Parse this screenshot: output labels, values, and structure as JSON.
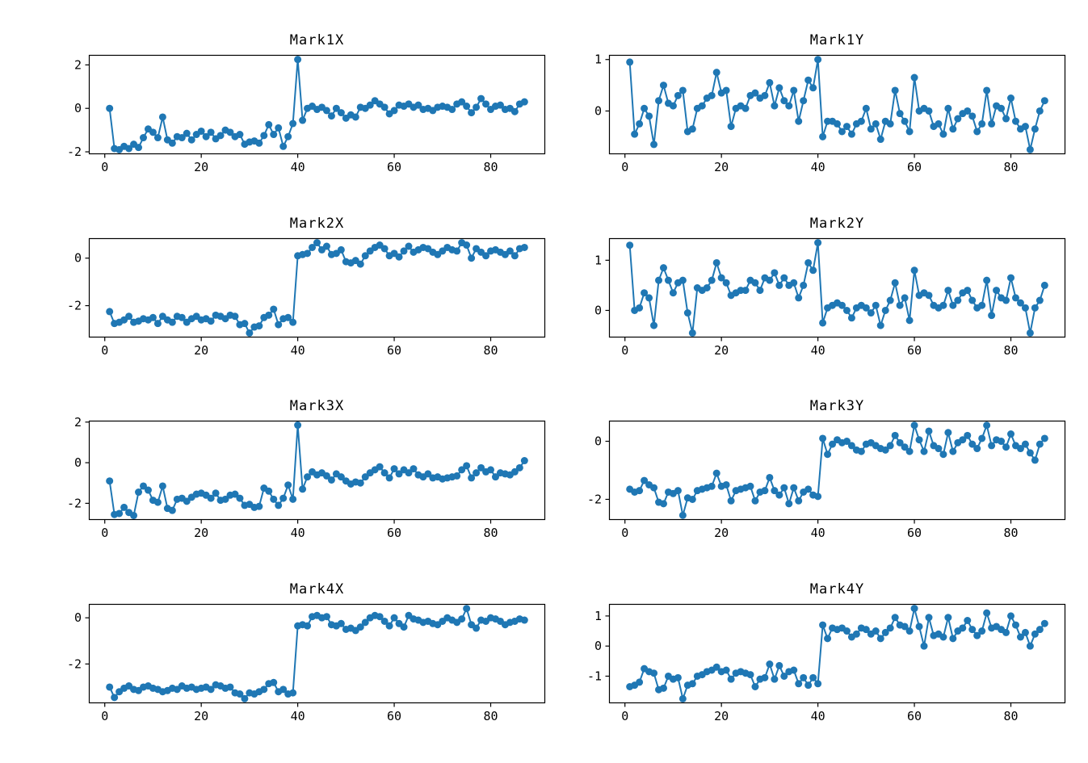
{
  "figure": {
    "background": "#ffffff",
    "series_color": "#1f77b4",
    "axis_color": "#000000",
    "text_color": "#000000"
  },
  "chart_data": [
    {
      "type": "line",
      "title": "Mark1X",
      "xlabel": "",
      "ylabel": "",
      "x_ticks": [
        0,
        20,
        40,
        60,
        80
      ],
      "y_ticks": [
        -2,
        0,
        2
      ],
      "xlim": [
        -3.3,
        91.3
      ],
      "ylim": [
        -2.11,
        2.46
      ],
      "x_start": 1,
      "n_points": 87,
      "grid": false,
      "legend": "none",
      "marker": "circle",
      "values": [
        0.0,
        -1.85,
        -1.9,
        -1.75,
        -1.85,
        -1.65,
        -1.8,
        -1.35,
        -0.95,
        -1.1,
        -1.35,
        -0.4,
        -1.45,
        -1.6,
        -1.3,
        -1.35,
        -1.15,
        -1.45,
        -1.2,
        -1.05,
        -1.3,
        -1.1,
        -1.4,
        -1.25,
        -1.0,
        -1.1,
        -1.3,
        -1.2,
        -1.65,
        -1.55,
        -1.5,
        -1.6,
        -1.25,
        -0.75,
        -1.2,
        -0.9,
        -1.75,
        -1.3,
        -0.7,
        2.25,
        -0.55,
        0.0,
        0.1,
        -0.05,
        0.05,
        -0.1,
        -0.35,
        0.0,
        -0.2,
        -0.45,
        -0.3,
        -0.4,
        0.05,
        0.0,
        0.15,
        0.35,
        0.2,
        0.05,
        -0.25,
        -0.1,
        0.15,
        0.1,
        0.2,
        0.05,
        0.15,
        -0.05,
        0.0,
        -0.1,
        0.05,
        0.1,
        0.05,
        -0.05,
        0.2,
        0.3,
        0.1,
        -0.2,
        0.05,
        0.45,
        0.2,
        -0.05,
        0.1,
        0.15,
        -0.05,
        0.0,
        -0.15,
        0.2,
        0.3
      ]
    },
    {
      "type": "line",
      "title": "Mark1Y",
      "xlabel": "",
      "ylabel": "",
      "x_ticks": [
        0,
        20,
        40,
        60,
        80
      ],
      "y_ticks": [
        0,
        1
      ],
      "xlim": [
        -3.3,
        91.3
      ],
      "ylim": [
        -0.84,
        1.09
      ],
      "x_start": 1,
      "n_points": 87,
      "grid": false,
      "legend": "none",
      "marker": "circle",
      "values": [
        0.95,
        -0.45,
        -0.25,
        0.05,
        -0.1,
        -0.65,
        0.2,
        0.5,
        0.15,
        0.1,
        0.3,
        0.4,
        -0.4,
        -0.35,
        0.05,
        0.1,
        0.25,
        0.3,
        0.75,
        0.35,
        0.4,
        -0.3,
        0.05,
        0.1,
        0.05,
        0.3,
        0.35,
        0.25,
        0.3,
        0.55,
        0.1,
        0.45,
        0.2,
        0.1,
        0.4,
        -0.2,
        0.2,
        0.6,
        0.45,
        1.0,
        -0.5,
        -0.2,
        -0.2,
        -0.25,
        -0.4,
        -0.3,
        -0.45,
        -0.25,
        -0.2,
        0.05,
        -0.35,
        -0.25,
        -0.55,
        -0.2,
        -0.25,
        0.4,
        -0.05,
        -0.2,
        -0.4,
        0.65,
        0.0,
        0.05,
        0.0,
        -0.3,
        -0.25,
        -0.45,
        0.05,
        -0.35,
        -0.15,
        -0.05,
        0.0,
        -0.1,
        -0.4,
        -0.25,
        0.4,
        -0.25,
        0.1,
        0.05,
        -0.15,
        0.25,
        -0.2,
        -0.35,
        -0.3,
        -0.75,
        -0.35,
        0.0,
        0.2
      ]
    },
    {
      "type": "line",
      "title": "Mark2X",
      "xlabel": "",
      "ylabel": "",
      "x_ticks": [
        0,
        20,
        40,
        60,
        80
      ],
      "y_ticks": [
        -2,
        0
      ],
      "xlim": [
        -3.3,
        91.3
      ],
      "ylim": [
        -3.34,
        0.84
      ],
      "x_start": 1,
      "n_points": 87,
      "grid": false,
      "legend": "none",
      "marker": "circle",
      "values": [
        -2.25,
        -2.75,
        -2.7,
        -2.6,
        -2.45,
        -2.7,
        -2.65,
        -2.55,
        -2.6,
        -2.5,
        -2.75,
        -2.45,
        -2.6,
        -2.7,
        -2.45,
        -2.5,
        -2.7,
        -2.55,
        -2.45,
        -2.6,
        -2.55,
        -2.65,
        -2.4,
        -2.45,
        -2.55,
        -2.4,
        -2.45,
        -2.8,
        -2.75,
        -3.15,
        -2.9,
        -2.85,
        -2.5,
        -2.4,
        -2.15,
        -2.8,
        -2.55,
        -2.5,
        -2.7,
        0.1,
        0.15,
        0.2,
        0.45,
        0.65,
        0.35,
        0.5,
        0.15,
        0.2,
        0.35,
        -0.15,
        -0.2,
        -0.1,
        -0.25,
        0.1,
        0.3,
        0.45,
        0.55,
        0.4,
        0.1,
        0.2,
        0.05,
        0.3,
        0.5,
        0.25,
        0.35,
        0.45,
        0.4,
        0.25,
        0.15,
        0.3,
        0.45,
        0.35,
        0.3,
        0.65,
        0.55,
        0.0,
        0.4,
        0.25,
        0.1,
        0.3,
        0.35,
        0.25,
        0.15,
        0.3,
        0.1,
        0.4,
        0.45
      ]
    },
    {
      "type": "line",
      "title": "Mark2Y",
      "xlabel": "",
      "ylabel": "",
      "x_ticks": [
        0,
        20,
        40,
        60,
        80
      ],
      "y_ticks": [
        0,
        1
      ],
      "xlim": [
        -3.3,
        91.3
      ],
      "ylim": [
        -0.54,
        1.44
      ],
      "x_start": 1,
      "n_points": 87,
      "grid": false,
      "legend": "none",
      "marker": "circle",
      "values": [
        1.3,
        0.0,
        0.05,
        0.35,
        0.25,
        -0.3,
        0.6,
        0.85,
        0.6,
        0.35,
        0.55,
        0.6,
        -0.05,
        -0.45,
        0.45,
        0.4,
        0.45,
        0.6,
        0.95,
        0.65,
        0.55,
        0.3,
        0.35,
        0.4,
        0.4,
        0.6,
        0.55,
        0.4,
        0.65,
        0.6,
        0.75,
        0.5,
        0.65,
        0.5,
        0.55,
        0.25,
        0.5,
        0.95,
        0.8,
        1.35,
        -0.25,
        0.05,
        0.1,
        0.15,
        0.1,
        0.0,
        -0.15,
        0.05,
        0.1,
        0.05,
        -0.05,
        0.1,
        -0.3,
        0.0,
        0.2,
        0.55,
        0.1,
        0.25,
        -0.2,
        0.8,
        0.3,
        0.35,
        0.3,
        0.1,
        0.05,
        0.1,
        0.4,
        0.1,
        0.2,
        0.35,
        0.4,
        0.2,
        0.05,
        0.1,
        0.6,
        -0.1,
        0.4,
        0.25,
        0.2,
        0.65,
        0.25,
        0.15,
        0.05,
        -0.45,
        0.05,
        0.2,
        0.5
      ]
    },
    {
      "type": "line",
      "title": "Mark3X",
      "xlabel": "",
      "ylabel": "",
      "x_ticks": [
        0,
        20,
        40,
        60,
        80
      ],
      "y_ticks": [
        -2,
        0,
        2
      ],
      "xlim": [
        -3.3,
        91.3
      ],
      "ylim": [
        -2.82,
        2.07
      ],
      "x_start": 1,
      "n_points": 87,
      "grid": false,
      "legend": "none",
      "marker": "circle",
      "values": [
        -0.9,
        -2.55,
        -2.5,
        -2.2,
        -2.45,
        -2.6,
        -1.45,
        -1.15,
        -1.35,
        -1.85,
        -1.95,
        -1.15,
        -2.25,
        -2.35,
        -1.8,
        -1.75,
        -1.9,
        -1.7,
        -1.55,
        -1.5,
        -1.6,
        -1.75,
        -1.5,
        -1.85,
        -1.8,
        -1.6,
        -1.55,
        -1.75,
        -2.1,
        -2.05,
        -2.2,
        -2.15,
        -1.25,
        -1.4,
        -1.8,
        -2.1,
        -1.75,
        -1.1,
        -1.8,
        1.85,
        -1.3,
        -0.7,
        -0.45,
        -0.6,
        -0.5,
        -0.65,
        -0.85,
        -0.55,
        -0.7,
        -0.9,
        -1.05,
        -0.95,
        -1.0,
        -0.7,
        -0.5,
        -0.35,
        -0.2,
        -0.5,
        -0.75,
        -0.3,
        -0.55,
        -0.35,
        -0.5,
        -0.3,
        -0.6,
        -0.7,
        -0.55,
        -0.75,
        -0.7,
        -0.8,
        -0.75,
        -0.7,
        -0.65,
        -0.35,
        -0.15,
        -0.75,
        -0.5,
        -0.25,
        -0.45,
        -0.35,
        -0.7,
        -0.5,
        -0.55,
        -0.6,
        -0.45,
        -0.25,
        0.1
      ]
    },
    {
      "type": "line",
      "title": "Mark3Y",
      "xlabel": "",
      "ylabel": "",
      "x_ticks": [
        0,
        20,
        40,
        60,
        80
      ],
      "y_ticks": [
        -2,
        0
      ],
      "xlim": [
        -3.3,
        91.3
      ],
      "ylim": [
        -2.71,
        0.71
      ],
      "x_start": 1,
      "n_points": 87,
      "grid": false,
      "legend": "none",
      "marker": "circle",
      "values": [
        -1.65,
        -1.75,
        -1.7,
        -1.35,
        -1.5,
        -1.6,
        -2.1,
        -2.15,
        -1.75,
        -1.8,
        -1.7,
        -2.55,
        -1.95,
        -2.0,
        -1.7,
        -1.65,
        -1.6,
        -1.55,
        -1.1,
        -1.55,
        -1.5,
        -2.05,
        -1.7,
        -1.65,
        -1.6,
        -1.55,
        -2.05,
        -1.75,
        -1.7,
        -1.25,
        -1.7,
        -1.85,
        -1.6,
        -2.15,
        -1.6,
        -2.05,
        -1.75,
        -1.65,
        -1.85,
        -1.9,
        0.1,
        -0.45,
        -0.1,
        0.05,
        -0.05,
        0.0,
        -0.15,
        -0.3,
        -0.35,
        -0.1,
        -0.05,
        -0.15,
        -0.25,
        -0.3,
        -0.15,
        0.2,
        -0.05,
        -0.2,
        -0.35,
        0.55,
        0.05,
        -0.35,
        0.35,
        -0.15,
        -0.25,
        -0.45,
        0.3,
        -0.35,
        -0.05,
        0.05,
        0.2,
        -0.1,
        -0.25,
        0.1,
        0.55,
        -0.15,
        0.05,
        0.0,
        -0.2,
        0.25,
        -0.15,
        -0.25,
        -0.1,
        -0.4,
        -0.65,
        -0.1,
        0.1
      ]
    },
    {
      "type": "line",
      "title": "Mark4X",
      "xlabel": "",
      "ylabel": "",
      "x_ticks": [
        0,
        20,
        40,
        60,
        80
      ],
      "y_ticks": [
        -2,
        0
      ],
      "xlim": [
        -3.3,
        91.3
      ],
      "ylim": [
        -3.7,
        0.6
      ],
      "x_start": 1,
      "n_points": 87,
      "grid": false,
      "legend": "none",
      "marker": "circle",
      "values": [
        -3.0,
        -3.45,
        -3.2,
        -3.05,
        -2.95,
        -3.1,
        -3.15,
        -3.0,
        -2.95,
        -3.05,
        -3.1,
        -3.2,
        -3.15,
        -3.05,
        -3.1,
        -2.95,
        -3.05,
        -3.0,
        -3.1,
        -3.05,
        -3.0,
        -3.1,
        -2.9,
        -2.95,
        -3.05,
        -3.0,
        -3.25,
        -3.3,
        -3.5,
        -3.25,
        -3.3,
        -3.2,
        -3.1,
        -2.85,
        -2.8,
        -3.2,
        -3.1,
        -3.3,
        -3.25,
        -0.35,
        -0.3,
        -0.35,
        0.05,
        0.1,
        0.0,
        0.05,
        -0.3,
        -0.35,
        -0.25,
        -0.5,
        -0.45,
        -0.55,
        -0.4,
        -0.2,
        0.0,
        0.1,
        0.05,
        -0.15,
        -0.35,
        0.0,
        -0.25,
        -0.4,
        0.1,
        -0.05,
        -0.1,
        -0.2,
        -0.15,
        -0.25,
        -0.3,
        -0.15,
        0.0,
        -0.1,
        -0.2,
        -0.05,
        0.4,
        -0.3,
        -0.45,
        -0.1,
        -0.15,
        0.0,
        -0.05,
        -0.15,
        -0.3,
        -0.2,
        -0.15,
        -0.05,
        -0.1
      ]
    },
    {
      "type": "line",
      "title": "Mark4Y",
      "xlabel": "",
      "ylabel": "",
      "x_ticks": [
        0,
        20,
        40,
        60,
        80
      ],
      "y_ticks": [
        -1,
        0,
        1
      ],
      "xlim": [
        -3.3,
        91.3
      ],
      "ylim": [
        -1.9,
        1.4
      ],
      "x_start": 1,
      "n_points": 87,
      "grid": false,
      "legend": "none",
      "marker": "circle",
      "values": [
        -1.35,
        -1.3,
        -1.2,
        -0.75,
        -0.85,
        -0.9,
        -1.45,
        -1.4,
        -1.0,
        -1.1,
        -1.05,
        -1.75,
        -1.3,
        -1.25,
        -1.0,
        -0.95,
        -0.85,
        -0.8,
        -0.7,
        -0.85,
        -0.8,
        -1.1,
        -0.9,
        -0.85,
        -0.9,
        -0.95,
        -1.35,
        -1.1,
        -1.05,
        -0.6,
        -1.1,
        -0.65,
        -1.0,
        -0.85,
        -0.8,
        -1.25,
        -1.05,
        -1.3,
        -1.05,
        -1.25,
        0.7,
        0.25,
        0.6,
        0.55,
        0.6,
        0.5,
        0.3,
        0.4,
        0.6,
        0.55,
        0.4,
        0.5,
        0.25,
        0.45,
        0.6,
        0.95,
        0.7,
        0.65,
        0.5,
        1.25,
        0.65,
        0.0,
        0.95,
        0.35,
        0.4,
        0.3,
        0.95,
        0.25,
        0.5,
        0.6,
        0.85,
        0.55,
        0.35,
        0.5,
        1.1,
        0.6,
        0.65,
        0.55,
        0.45,
        1.0,
        0.7,
        0.3,
        0.45,
        0.0,
        0.4,
        0.55,
        0.75
      ]
    }
  ]
}
